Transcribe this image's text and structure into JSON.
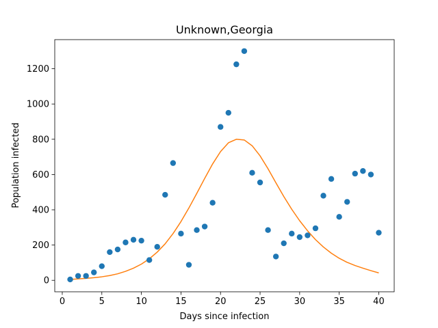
{
  "chart_data": {
    "type": "scatter",
    "title": "Unknown,Georgia",
    "xlabel": "Days since infection",
    "ylabel": "Population infected",
    "xlim": [
      -0.95,
      41.95
    ],
    "ylim": [
      -65,
      1365
    ],
    "xticks": [
      0,
      5,
      10,
      15,
      20,
      25,
      30,
      35,
      40
    ],
    "yticks": [
      0,
      200,
      400,
      600,
      800,
      1000,
      1200
    ],
    "grid": false,
    "series": [
      {
        "kind": "scatter",
        "color": "#1f77b4",
        "x": [
          1,
          2,
          3,
          4,
          5,
          6,
          7,
          8,
          9,
          10,
          11,
          12,
          13,
          14,
          15,
          16,
          17,
          18,
          19,
          20,
          21,
          22,
          23,
          24,
          25,
          26,
          27,
          28,
          29,
          30,
          31,
          32,
          33,
          34,
          35,
          36,
          37,
          38,
          39,
          40
        ],
        "y": [
          5,
          25,
          25,
          45,
          80,
          160,
          175,
          215,
          230,
          225,
          115,
          190,
          485,
          665,
          265,
          88,
          285,
          305,
          440,
          870,
          950,
          1225,
          1300,
          610,
          555,
          285,
          135,
          210,
          265,
          245,
          255,
          295,
          480,
          575,
          360,
          445,
          605,
          620,
          600,
          270
        ]
      },
      {
        "kind": "line",
        "color": "#ff7f0e",
        "x": [
          1,
          2,
          3,
          4,
          5,
          6,
          7,
          8,
          9,
          10,
          11,
          12,
          13,
          14,
          15,
          16,
          17,
          18,
          19,
          20,
          21,
          22,
          23,
          24,
          25,
          26,
          27,
          28,
          29,
          30,
          31,
          32,
          33,
          34,
          35,
          36,
          37,
          38,
          39,
          40
        ],
        "y": [
          5,
          8,
          11,
          15,
          20,
          27,
          37,
          51,
          69,
          92,
          122,
          160,
          207,
          265,
          333,
          410,
          493,
          578,
          660,
          730,
          780,
          800,
          796,
          763,
          706,
          633,
          553,
          475,
          403,
          338,
          281,
          231,
          189,
          154,
          125,
          102,
          84,
          69,
          55,
          42
        ]
      }
    ]
  }
}
